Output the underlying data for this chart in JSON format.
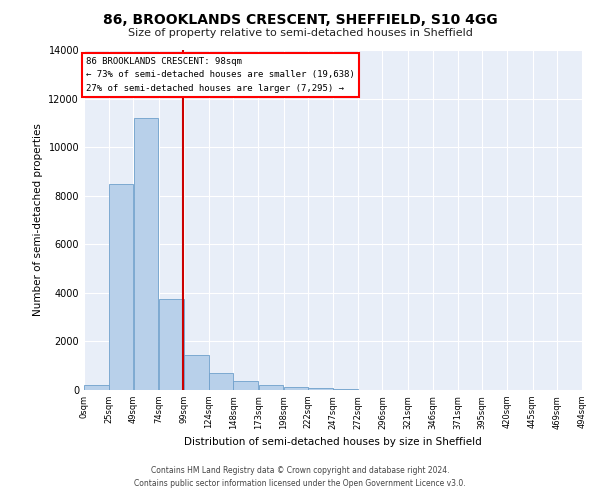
{
  "title": "86, BROOKLANDS CRESCENT, SHEFFIELD, S10 4GG",
  "subtitle": "Size of property relative to semi-detached houses in Sheffield",
  "xlabel": "Distribution of semi-detached houses by size in Sheffield",
  "ylabel": "Number of semi-detached properties",
  "annotation_title": "86 BROOKLANDS CRESCENT: 98sqm",
  "annotation_line2": "← 73% of semi-detached houses are smaller (19,638)",
  "annotation_line3": "27% of semi-detached houses are larger (7,295) →",
  "footer1": "Contains HM Land Registry data © Crown copyright and database right 2024.",
  "footer2": "Contains public sector information licensed under the Open Government Licence v3.0.",
  "bar_color": "#b8d0ea",
  "bar_edge_color": "#6fa0cc",
  "highlight_line_color": "#cc0000",
  "background_color": "#e8eef8",
  "bins": [
    "0sqm",
    "25sqm",
    "49sqm",
    "74sqm",
    "99sqm",
    "124sqm",
    "148sqm",
    "173sqm",
    "198sqm",
    "222sqm",
    "247sqm",
    "272sqm",
    "296sqm",
    "321sqm",
    "346sqm",
    "371sqm",
    "395sqm",
    "420sqm",
    "445sqm",
    "469sqm",
    "494sqm"
  ],
  "bin_edges": [
    0,
    25,
    49,
    74,
    99,
    124,
    148,
    173,
    198,
    222,
    247,
    272,
    296,
    321,
    346,
    371,
    395,
    420,
    445,
    469,
    494
  ],
  "values": [
    200,
    8500,
    11200,
    3750,
    1450,
    700,
    380,
    200,
    130,
    70,
    35,
    18,
    10,
    5,
    3,
    2,
    2,
    1,
    1,
    0
  ],
  "property_size": 98,
  "ylim": [
    0,
    14000
  ],
  "yticks": [
    0,
    2000,
    4000,
    6000,
    8000,
    10000,
    12000,
    14000
  ]
}
